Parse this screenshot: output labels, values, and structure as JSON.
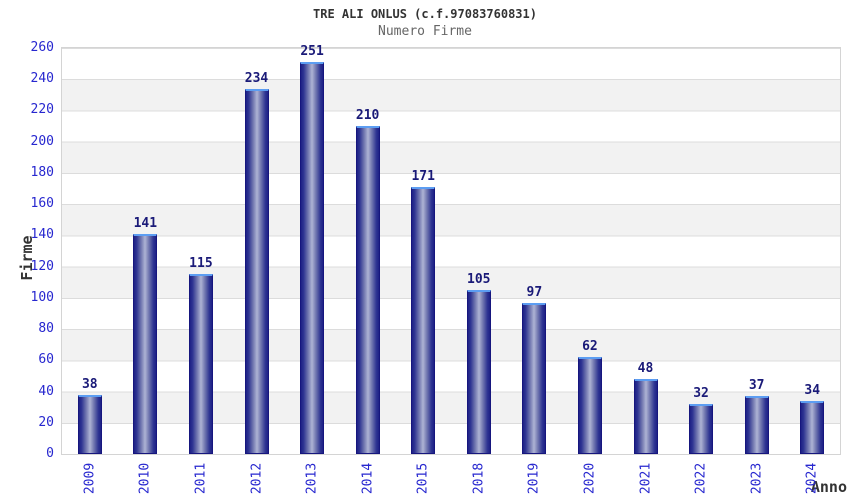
{
  "header": {
    "title": "TRE ALI ONLUS (c.f.97083760831)",
    "subtitle": "Numero Firme"
  },
  "chart_data": {
    "type": "bar",
    "title": "TRE ALI ONLUS (c.f.97083760831)",
    "subtitle": "Numero Firme",
    "categories": [
      "2009",
      "2010",
      "2011",
      "2012",
      "2013",
      "2014",
      "2015",
      "2018",
      "2019",
      "2020",
      "2021",
      "2022",
      "2023",
      "2024"
    ],
    "values": [
      38,
      141,
      115,
      234,
      251,
      210,
      171,
      105,
      97,
      62,
      48,
      32,
      37,
      34
    ],
    "xlabel": "Anno",
    "ylabel": "Firme",
    "ylim": [
      0,
      260
    ],
    "ytick_step": 20,
    "yticks": [
      0,
      20,
      40,
      60,
      80,
      100,
      120,
      140,
      160,
      180,
      200,
      220,
      240,
      260
    ],
    "grid": true,
    "legend": "none",
    "x_tick_rotation_deg": 90,
    "value_labels": "above bars",
    "colors": {
      "tick_label": "#2727cf",
      "value_label": "#1a1a78",
      "axis_label": "#333333",
      "subtitle": "#666666",
      "grid_line": "#dcdcdc",
      "plot_border": "#d4d4d4",
      "band_fill": "#f2f2f2",
      "bar_border": "#16167e",
      "bar_top_highlight": "#5c9df2",
      "bar_edge": "#1e2186",
      "bar_center": "#aeb3d4"
    }
  }
}
